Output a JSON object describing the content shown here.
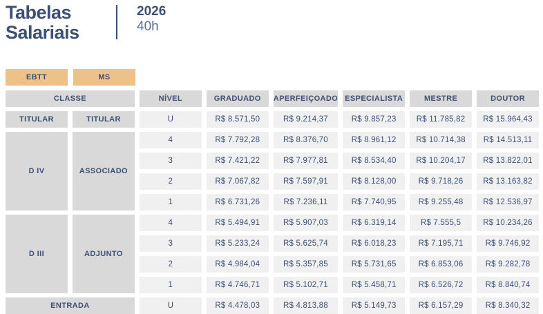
{
  "header": {
    "title": "Tabelas Salariais",
    "year": "2026",
    "hours": "40h"
  },
  "tabs": [
    {
      "id": "ebtt",
      "label": "EBTT"
    },
    {
      "id": "ms",
      "label": "MS"
    }
  ],
  "table": {
    "classe_header": "CLASSE",
    "nivel_header": "NÍVEL",
    "value_headers": [
      "GRADUADO",
      "APERFEIÇOADO",
      "ESPECIALISTA",
      "MESTRE",
      "DOUTOR"
    ],
    "groups": [
      {
        "classe": [
          "TITULAR",
          "TITULAR"
        ],
        "rows": [
          {
            "nivel": "U",
            "values": [
              "R$ 8.571,50",
              "R$ 9.214,37",
              "R$ 9.857,23",
              "R$ 11.785,82",
              "R$ 15.964,43"
            ]
          }
        ]
      },
      {
        "classe": [
          "D IV",
          "ASSOCIADO"
        ],
        "rows": [
          {
            "nivel": "4",
            "values": [
              "R$ 7.792,28",
              "R$ 8.376,70",
              "R$ 8.961,12",
              "R$ 10.714,38",
              "R$ 14.513,11"
            ]
          },
          {
            "nivel": "3",
            "values": [
              "R$ 7.421,22",
              "R$ 7.977,81",
              "R$ 8.534,40",
              "R$ 10.204,17",
              "R$ 13.822,01"
            ]
          },
          {
            "nivel": "2",
            "values": [
              "R$ 7.067,82",
              "R$ 7.597,91",
              "R$ 8.128,00",
              "R$ 9.718,26",
              "R$ 13.163,82"
            ]
          },
          {
            "nivel": "1",
            "values": [
              "R$ 6.731,26",
              "R$ 7.236,11",
              "R$ 7.740,95",
              "R$ 9.255,48",
              "R$ 12.536,97"
            ]
          }
        ]
      },
      {
        "classe": [
          "D III",
          "ADJUNTO"
        ],
        "rows": [
          {
            "nivel": "4",
            "values": [
              "R$ 5.494,91",
              "R$ 5.907,03",
              "R$ 6.319,14",
              "R$ 7.555,5",
              "R$ 10.234,26"
            ]
          },
          {
            "nivel": "3",
            "values": [
              "R$ 5.233,24",
              "R$ 5.625,74",
              "R$ 6.018,23",
              "R$ 7.195,71",
              "R$ 9.746,92"
            ]
          },
          {
            "nivel": "2",
            "values": [
              "R$ 4.984,04",
              "R$ 5.357,85",
              "R$ 5.731,65",
              "R$ 6.853,06",
              "R$ 9.282,78"
            ]
          },
          {
            "nivel": "1",
            "values": [
              "R$ 4.746,71",
              "R$ 5.102,71",
              "R$ 5.458,71",
              "R$ 6.526,72",
              "R$ 8.840,74"
            ]
          }
        ]
      },
      {
        "classe": [
          "ENTRADA"
        ],
        "rows": [
          {
            "nivel": "U",
            "values": [
              "R$ 4.478,03",
              "R$ 4.813,88",
              "R$ 5.149,73",
              "R$ 6.157,29",
              "R$ 8.340,32"
            ]
          }
        ]
      }
    ]
  },
  "colors": {
    "accent_tab": "#eec189",
    "label_bg": "#d9d9d9",
    "data_bg": "#f0f0f0",
    "navy_text": "#3d5073"
  }
}
